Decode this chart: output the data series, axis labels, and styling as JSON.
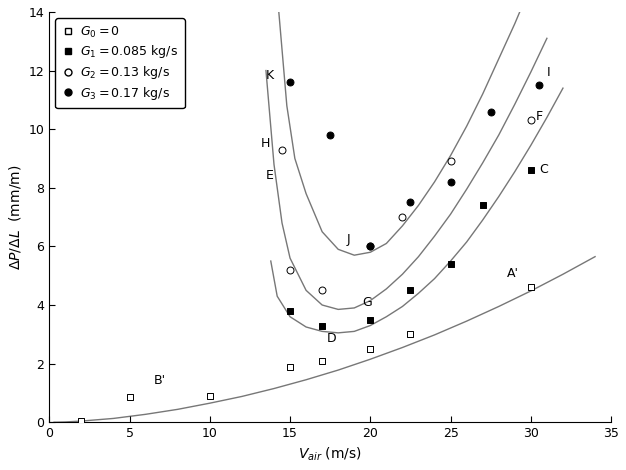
{
  "xlim": [
    0,
    35
  ],
  "ylim": [
    0,
    14
  ],
  "xticks": [
    0,
    5,
    10,
    15,
    20,
    25,
    30,
    35
  ],
  "yticks": [
    0,
    2,
    4,
    6,
    8,
    10,
    12,
    14
  ],
  "scatter_G0": {
    "x": [
      2,
      5,
      10,
      15,
      17,
      20,
      22.5,
      30
    ],
    "y": [
      0.05,
      0.85,
      0.9,
      1.9,
      2.1,
      2.5,
      3.0,
      4.6
    ]
  },
  "scatter_G1": {
    "x": [
      15,
      17,
      20,
      22.5,
      25,
      27,
      30
    ],
    "y": [
      3.8,
      3.3,
      3.5,
      4.5,
      5.4,
      7.4,
      8.6
    ]
  },
  "scatter_G2": {
    "x": [
      14.5,
      15,
      17,
      20,
      22,
      25,
      30
    ],
    "y": [
      9.3,
      5.2,
      4.5,
      6.0,
      7.0,
      8.9,
      10.3
    ]
  },
  "scatter_G3": {
    "x": [
      15,
      17.5,
      20,
      22.5,
      25,
      27.5,
      30.5
    ],
    "y": [
      11.6,
      9.8,
      6.0,
      7.5,
      8.2,
      10.6,
      11.5
    ]
  },
  "curve_G0_x": [
    0.3,
    1,
    2,
    4,
    6,
    8,
    10,
    12,
    14,
    16,
    18,
    20,
    22,
    24,
    26,
    28,
    30,
    32,
    34
  ],
  "curve_G0_y": [
    0.0,
    0.01,
    0.04,
    0.13,
    0.27,
    0.44,
    0.65,
    0.88,
    1.15,
    1.45,
    1.78,
    2.15,
    2.55,
    2.98,
    3.45,
    3.95,
    4.48,
    5.05,
    5.65
  ],
  "curve_G1_x": [
    13.8,
    14.2,
    15,
    16,
    17,
    18,
    19,
    20,
    21,
    22,
    23,
    24,
    25,
    26,
    27,
    28,
    29,
    30,
    31,
    32
  ],
  "curve_G1_y": [
    5.5,
    4.3,
    3.6,
    3.25,
    3.1,
    3.05,
    3.1,
    3.3,
    3.6,
    3.95,
    4.4,
    4.9,
    5.5,
    6.15,
    6.9,
    7.7,
    8.55,
    9.45,
    10.4,
    11.4
  ],
  "curve_G2_x": [
    13.5,
    14.0,
    14.5,
    15,
    16,
    17,
    18,
    19,
    20,
    21,
    22,
    23,
    24,
    25,
    26,
    27,
    28,
    29,
    30,
    31
  ],
  "curve_G2_y": [
    12.0,
    8.8,
    6.8,
    5.6,
    4.5,
    4.0,
    3.85,
    3.9,
    4.15,
    4.55,
    5.05,
    5.65,
    6.35,
    7.1,
    7.95,
    8.85,
    9.8,
    10.85,
    11.95,
    13.1
  ],
  "curve_G3_x": [
    14.3,
    14.8,
    15.3,
    16,
    17,
    18,
    19,
    20,
    21,
    22,
    23,
    24,
    25,
    26,
    27,
    28,
    29,
    30
  ],
  "curve_G3_y": [
    14.0,
    10.8,
    9.0,
    7.8,
    6.5,
    5.9,
    5.7,
    5.8,
    6.1,
    6.7,
    7.4,
    8.2,
    9.1,
    10.1,
    11.2,
    12.4,
    13.6,
    14.9
  ],
  "curve_color": "#777777",
  "curve_linewidth": 1.0,
  "label_fontsize": 9,
  "tick_fontsize": 9,
  "legend_fontsize": 9
}
